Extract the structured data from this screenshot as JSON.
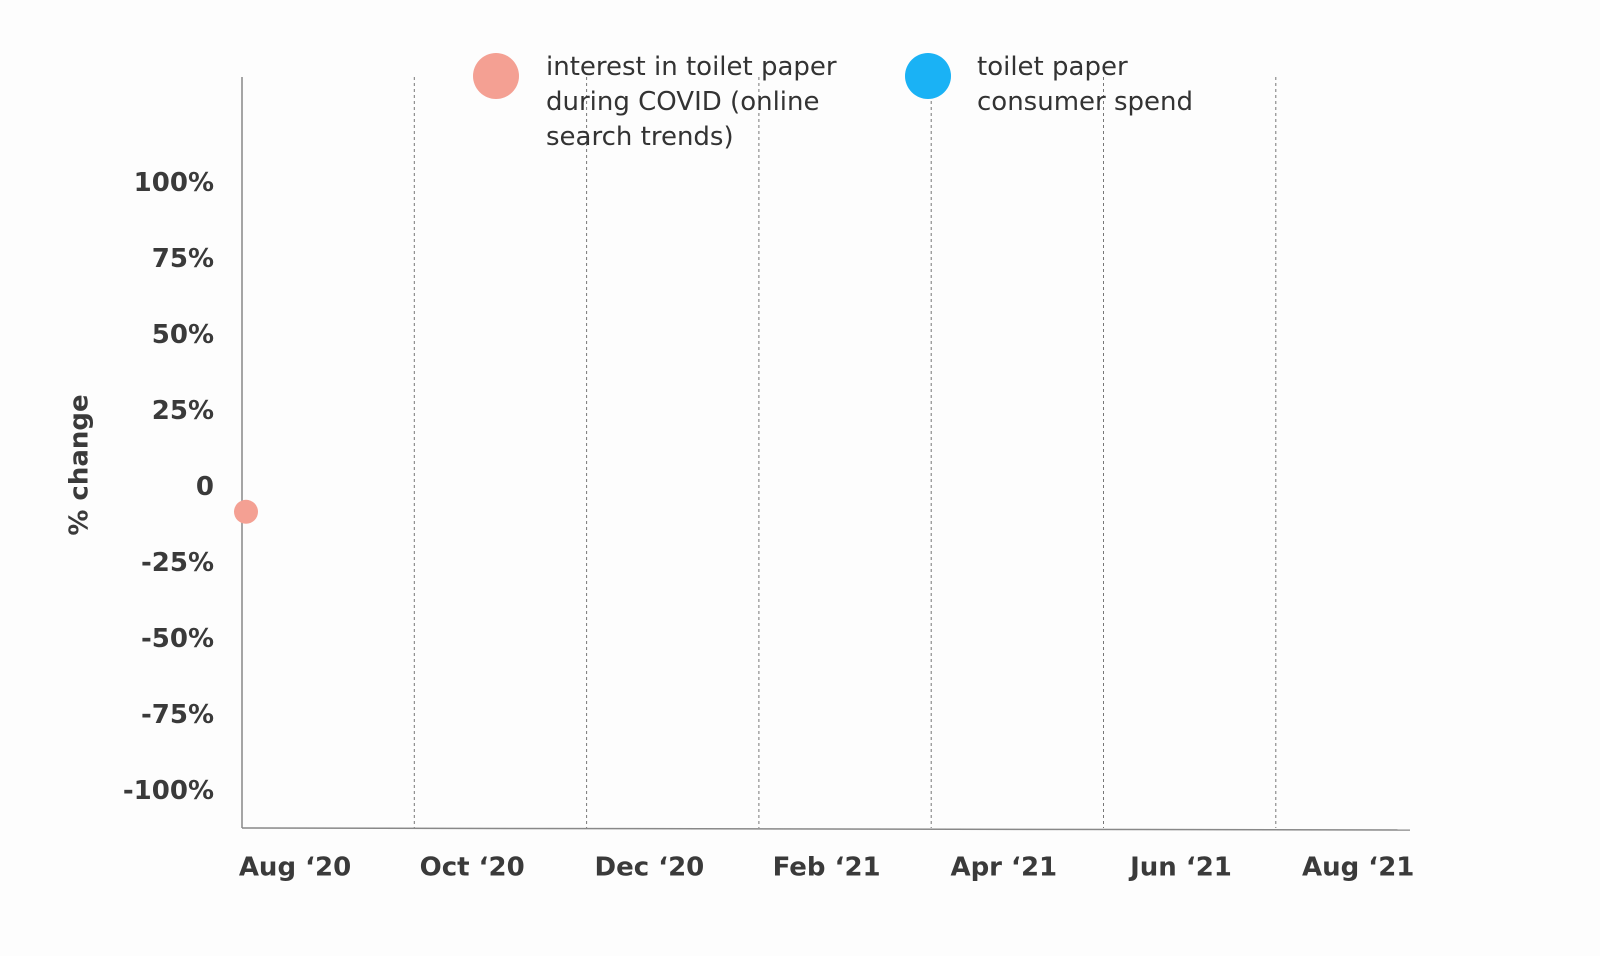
{
  "chart_data": {
    "type": "scatter",
    "y_axis_label": "% change",
    "categories": [
      "Aug ‘20",
      "Oct ‘20",
      "Dec ‘20",
      "Feb ‘21",
      "Apr ‘21",
      "Jun ‘21",
      "Aug ‘21"
    ],
    "series": [
      {
        "name": "interest in toilet paper during COVID (online search trends)",
        "color": "#f4a093",
        "values": [
          -8,
          null,
          null,
          null,
          null,
          null,
          null
        ]
      },
      {
        "name": "toilet paper consumer spend",
        "color": "#1ab2f5",
        "values": [
          null,
          null,
          null,
          null,
          null,
          null,
          null
        ]
      }
    ],
    "ylim": [
      -112,
      135
    ],
    "yticks": [
      {
        "value": 100,
        "label": "100%"
      },
      {
        "value": 75,
        "label": "75%"
      },
      {
        "value": 50,
        "label": "50%"
      },
      {
        "value": 25,
        "label": "25%"
      },
      0,
      {
        "value": -25,
        "label": "-25%"
      },
      {
        "value": -50,
        "label": "-50%"
      },
      {
        "value": -75,
        "label": "-75%"
      },
      {
        "value": -100,
        "label": "-100%"
      }
    ]
  }
}
